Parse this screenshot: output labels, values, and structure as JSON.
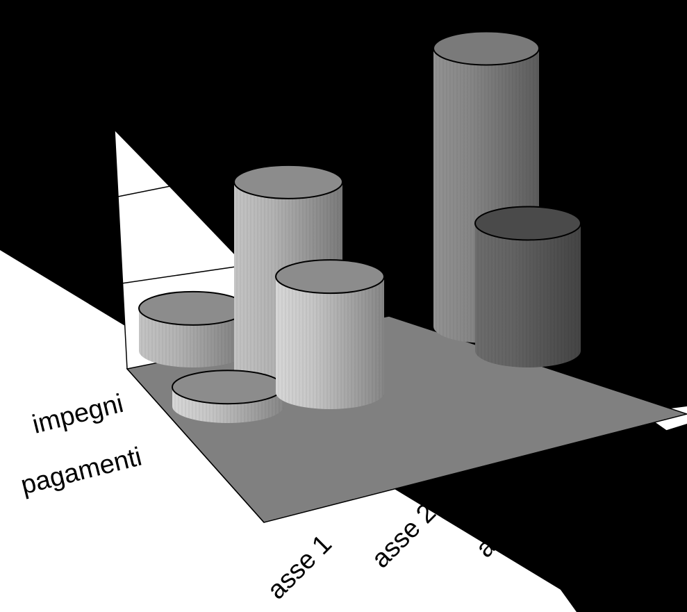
{
  "chart_data": {
    "type": "bar",
    "subtype": "3d-cylinder",
    "categories": [
      "asse 1",
      "asse 2",
      "asse 3"
    ],
    "series": [
      {
        "name": "impegni",
        "values": [
          0.55,
          2.5,
          3.6
        ]
      },
      {
        "name": "pagamenti",
        "values": [
          0.25,
          1.5,
          1.65
        ]
      }
    ],
    "ylim": [
      0,
      4
    ],
    "grid": true,
    "title": "",
    "xlabel": "",
    "ylabel": ""
  },
  "colors": {
    "background_band": "#000000",
    "floor": "#808080",
    "wall": "#ffffff",
    "impegni": [
      "#a3a3a3",
      "#a3a3a3",
      "#7a7a7a"
    ],
    "pagamenti": [
      "#b3b3b3",
      "#b3b3b3",
      "#5a5a5a"
    ],
    "top_fill": "#8c8c8c",
    "outline": "#000000"
  }
}
